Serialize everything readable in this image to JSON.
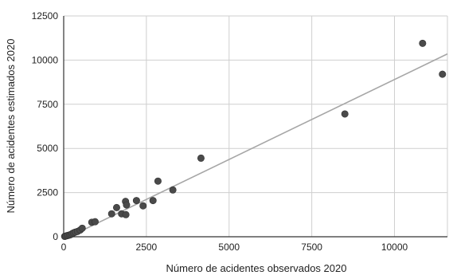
{
  "chart_data": {
    "type": "scatter",
    "title": "",
    "xlabel": "Número  de acidentes observados 2020",
    "ylabel": "Número de acidentes estimados 2020",
    "xlim": [
      0,
      11600
    ],
    "ylim": [
      0,
      12500
    ],
    "x_ticks": [
      0,
      2500,
      5000,
      7500,
      10000
    ],
    "y_ticks": [
      0,
      2500,
      5000,
      7500,
      10000,
      12500
    ],
    "grid": true,
    "legend": "none",
    "colors": {
      "points": "#4a4a4a",
      "trendline": "#a6a6a6",
      "grid": "#cfcfcf",
      "axis": "#333333"
    },
    "series": [
      {
        "points": [
          [
            30,
            20
          ],
          [
            60,
            40
          ],
          [
            100,
            60
          ],
          [
            140,
            80
          ],
          [
            180,
            100
          ],
          [
            220,
            130
          ],
          [
            260,
            180
          ],
          [
            300,
            220
          ],
          [
            350,
            260
          ],
          [
            420,
            300
          ],
          [
            500,
            380
          ],
          [
            560,
            480
          ],
          [
            850,
            820
          ],
          [
            950,
            850
          ],
          [
            1450,
            1300
          ],
          [
            1600,
            1650
          ],
          [
            1750,
            1300
          ],
          [
            1880,
            1250
          ],
          [
            1870,
            2000
          ],
          [
            1900,
            1800
          ],
          [
            2200,
            2050
          ],
          [
            2400,
            1750
          ],
          [
            2700,
            2050
          ],
          [
            2850,
            3150
          ],
          [
            3300,
            2650
          ],
          [
            4150,
            4450
          ],
          [
            8500,
            6950
          ],
          [
            10850,
            10950
          ],
          [
            11450,
            9200
          ]
        ]
      }
    ],
    "trendline": {
      "x": [
        0,
        11600
      ],
      "y": [
        -150,
        10350
      ]
    }
  }
}
